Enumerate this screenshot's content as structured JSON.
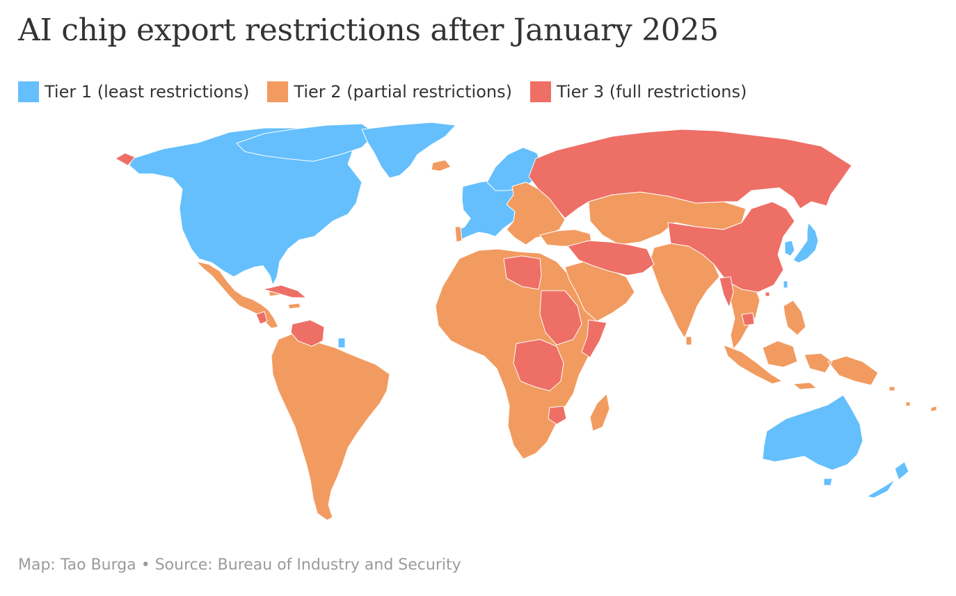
{
  "title": "AI chip export restrictions after January 2025",
  "legend": [
    {
      "label": "Tier 1 (least restrictions)",
      "color": "#64bffc"
    },
    {
      "label": "Tier 2 (partial restrictions)",
      "color": "#f29b60"
    },
    {
      "label": "Tier 3 (full restrictions)",
      "color": "#ee6f66"
    }
  ],
  "tier_colors": {
    "tier1": "#64bffc",
    "tier2": "#f29b60",
    "tier3": "#ee6f66"
  },
  "footer": {
    "credit": "Map: Tao Burga",
    "separator": "•",
    "source": "Source: Bureau of Industry and Security"
  }
}
